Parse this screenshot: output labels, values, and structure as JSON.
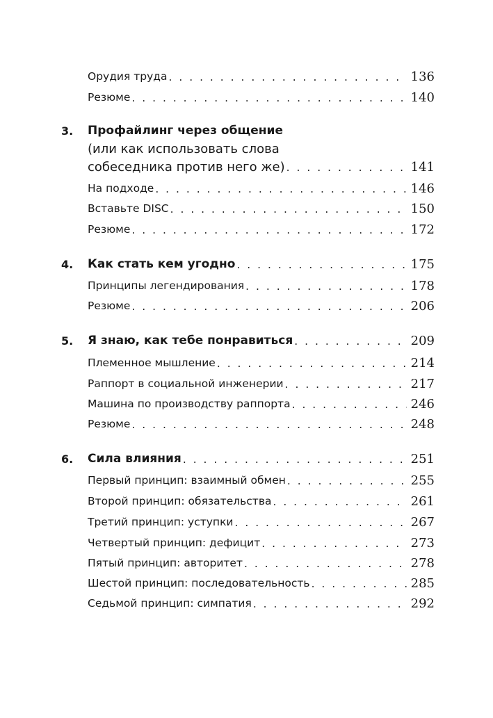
{
  "entries": [
    {
      "level": "section",
      "title": "Орудия труда",
      "page": "136"
    },
    {
      "level": "section",
      "title": "Резюме",
      "page": "140"
    },
    {
      "level": "chapter",
      "number": "3.",
      "title": "Профайлинг через общение"
    },
    {
      "level": "chapter-cont",
      "title": "(или как использовать слова"
    },
    {
      "level": "chapter-cont",
      "title": "собеседника против него же)",
      "page": "141"
    },
    {
      "level": "section",
      "title": "На подходе",
      "page": "146"
    },
    {
      "level": "section",
      "title": "Вставьте DISC",
      "page": "150"
    },
    {
      "level": "section",
      "title": "Резюме",
      "page": "172"
    },
    {
      "level": "chapter",
      "number": "4.",
      "title": "Как стать кем угодно",
      "page": "175"
    },
    {
      "level": "section",
      "title": "Принципы легендирования",
      "page": "178"
    },
    {
      "level": "section",
      "title": "Резюме",
      "page": "206"
    },
    {
      "level": "chapter",
      "number": "5.",
      "title": "Я знаю, как тебе понравиться",
      "page": "209"
    },
    {
      "level": "section",
      "title": "Племенное мышление",
      "page": "214"
    },
    {
      "level": "section",
      "title": "Раппорт в социальной инженерии",
      "page": "217"
    },
    {
      "level": "section",
      "title": "Машина по производству раппорта",
      "page": "246"
    },
    {
      "level": "section",
      "title": "Резюме",
      "page": "248"
    },
    {
      "level": "chapter",
      "number": "6.",
      "title": "Сила влияния",
      "page": "251"
    },
    {
      "level": "section",
      "title": "Первый принцип: взаимный обмен",
      "page": "255"
    },
    {
      "level": "section",
      "title": "Второй принцип: обязательства",
      "page": "261"
    },
    {
      "level": "section",
      "title": "Третий принцип: уступки",
      "page": "267"
    },
    {
      "level": "section",
      "title": "Четвертый принцип: дефицит",
      "page": "273"
    },
    {
      "level": "section",
      "title": "Пятый принцип: авторитет",
      "page": "278"
    },
    {
      "level": "section",
      "title": "Шестой принцип: последовательность",
      "page": "285"
    },
    {
      "level": "section",
      "title": "Седьмой принцип: симпатия",
      "page": "292"
    }
  ]
}
